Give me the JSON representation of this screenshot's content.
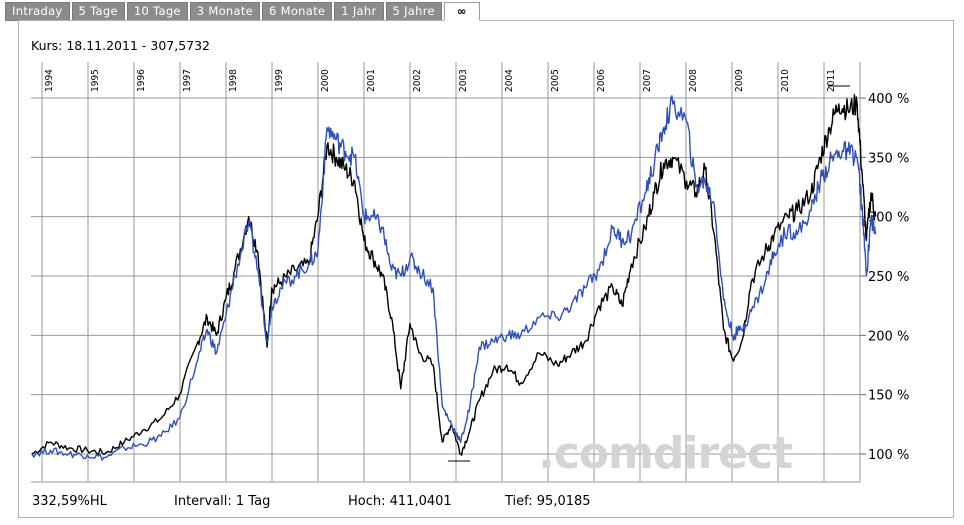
{
  "tabs": [
    "Intraday",
    "5 Tage",
    "10 Tage",
    "3 Monate",
    "6 Monate",
    "1 Jahr",
    "5 Jahre",
    "∞"
  ],
  "active_tab": "∞",
  "kurs_label": "Kurs: 18.11.2011 - 307,5732",
  "watermark": ".comdirect",
  "footer": {
    "performance": "332,59%HL",
    "interval": "Intervall: 1 Tag",
    "high": "Hoch: 411,0401",
    "low": "Tief: 95,0185"
  },
  "colors": {
    "series_black": "#000000",
    "series_blue": "#3050b8",
    "grid": "#9a9a9a",
    "tab_bg": "#8c8c8c"
  },
  "chart_data": {
    "type": "line",
    "x_axis_labels": [
      "1994",
      "1995",
      "1996",
      "1997",
      "1998",
      "1999",
      "2000",
      "2001",
      "2002",
      "2003",
      "2004",
      "2005",
      "2006",
      "2007",
      "2008",
      "2009",
      "2010",
      "2011"
    ],
    "y_tick_labels": [
      "100 %",
      "150 %",
      "200 %",
      "250 %",
      "300 %",
      "350 %",
      "400 %"
    ],
    "y_ticks": [
      100,
      150,
      200,
      250,
      300,
      350,
      400
    ],
    "ylim": [
      78,
      413
    ],
    "xlim": [
      1993.5,
      2012.0
    ],
    "grid": true,
    "series": [
      {
        "color": "#000000",
        "x": [
          1993.6,
          1994.0,
          1994.4,
          1994.8,
          1995.2,
          1995.6,
          1996.0,
          1996.4,
          1996.8,
          1997.2,
          1997.4,
          1997.6,
          1997.8,
          1998.0,
          1998.3,
          1998.5,
          1998.7,
          1998.8,
          1999.0,
          1999.3,
          1999.6,
          1999.8,
          2000.0,
          2000.2,
          2000.4,
          2000.6,
          2000.8,
          2001.0,
          2001.2,
          2001.4,
          2001.6,
          2001.8,
          2002.0,
          2002.3,
          2002.5,
          2002.7,
          2002.9,
          2003.1,
          2003.3,
          2003.6,
          2003.9,
          2004.2,
          2004.6,
          2005.0,
          2005.3,
          2005.6,
          2005.9,
          2006.2,
          2006.4,
          2006.6,
          2006.9,
          2007.1,
          2007.3,
          2007.5,
          2007.8,
          2008.0,
          2008.2,
          2008.4,
          2008.6,
          2008.8,
          2009.0,
          2009.2,
          2009.5,
          2009.7,
          2010.0,
          2010.2,
          2010.5,
          2010.7,
          2010.9,
          2011.1,
          2011.3,
          2011.5,
          2011.6,
          2011.7,
          2011.8,
          2011.9
        ],
        "y": [
          100,
          110,
          105,
          103,
          101,
          110,
          120,
          130,
          150,
          195,
          215,
          200,
          230,
          255,
          300,
          270,
          190,
          240,
          245,
          255,
          260,
          300,
          360,
          350,
          340,
          330,
          280,
          265,
          250,
          215,
          155,
          210,
          185,
          175,
          110,
          125,
          100,
          120,
          145,
          170,
          175,
          160,
          185,
          175,
          185,
          195,
          225,
          240,
          225,
          260,
          290,
          320,
          345,
          350,
          330,
          320,
          340,
          285,
          205,
          180,
          195,
          245,
          270,
          285,
          300,
          305,
          320,
          350,
          375,
          395,
          390,
          395,
          340,
          280,
          320,
          300
        ]
      },
      {
        "color": "#3050b8",
        "x": [
          1993.6,
          1994.0,
          1994.4,
          1994.8,
          1995.2,
          1995.6,
          1996.0,
          1996.4,
          1996.8,
          1997.2,
          1997.4,
          1997.6,
          1997.8,
          1998.0,
          1998.3,
          1998.5,
          1998.7,
          1998.8,
          1999.0,
          1999.3,
          1999.6,
          1999.8,
          2000.0,
          2000.2,
          2000.4,
          2000.6,
          2000.8,
          2001.0,
          2001.2,
          2001.4,
          2001.6,
          2001.8,
          2002.0,
          2002.3,
          2002.5,
          2002.7,
          2002.9,
          2003.1,
          2003.3,
          2003.6,
          2003.9,
          2004.2,
          2004.6,
          2005.0,
          2005.3,
          2005.6,
          2005.9,
          2006.2,
          2006.4,
          2006.6,
          2006.9,
          2007.1,
          2007.3,
          2007.5,
          2007.8,
          2008.0,
          2008.2,
          2008.4,
          2008.6,
          2008.8,
          2009.0,
          2009.2,
          2009.5,
          2009.7,
          2010.0,
          2010.2,
          2010.5,
          2010.7,
          2010.9,
          2011.1,
          2011.3,
          2011.5,
          2011.6,
          2011.7,
          2011.8,
          2011.9
        ],
        "y": [
          100,
          103,
          100,
          99,
          97,
          105,
          108,
          115,
          130,
          180,
          205,
          185,
          215,
          250,
          295,
          255,
          195,
          225,
          240,
          250,
          260,
          270,
          375,
          365,
          355,
          350,
          300,
          300,
          290,
          255,
          250,
          265,
          255,
          240,
          140,
          125,
          110,
          140,
          190,
          195,
          200,
          200,
          215,
          215,
          225,
          240,
          255,
          290,
          280,
          285,
          320,
          345,
          375,
          395,
          380,
          325,
          330,
          310,
          230,
          200,
          205,
          220,
          245,
          270,
          290,
          285,
          305,
          330,
          345,
          355,
          355,
          350,
          310,
          250,
          300,
          285
        ]
      }
    ]
  }
}
